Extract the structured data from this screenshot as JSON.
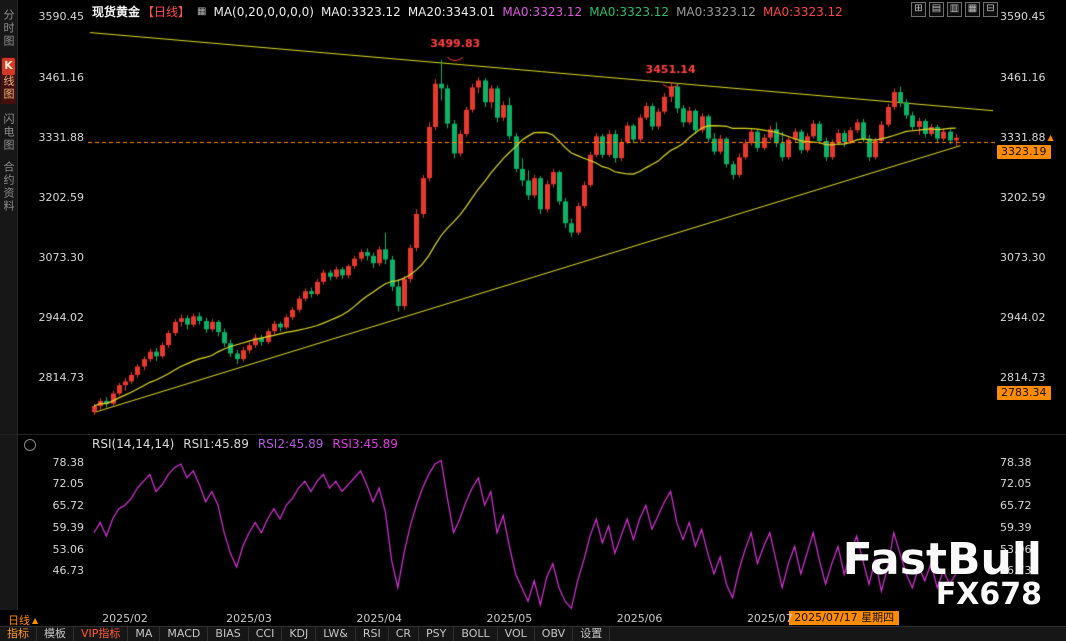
{
  "legend": {
    "symbol": "现货黄金",
    "period": "【日线】",
    "settings_icon": "▦",
    "ma_settings": "MA(0,20,0,0,0,0)",
    "ma_items": [
      {
        "text": "MA0:3323.12",
        "color": "#ededed"
      },
      {
        "text": "MA20:3343.01",
        "color": "#ededed"
      },
      {
        "text": "MA0:3323.12",
        "color": "#de59de"
      },
      {
        "text": "MA0:3323.12",
        "color": "#2fbf6b"
      },
      {
        "text": "MA0:3323.12",
        "color": "#9a9a9a"
      },
      {
        "text": "MA0:3323.12",
        "color": "#ff4545"
      }
    ]
  },
  "window_icons": [
    {
      "name": "grid-layout-icon",
      "glyph": "⊞"
    },
    {
      "name": "rows-layout-icon",
      "glyph": "▤"
    },
    {
      "name": "columns-layout-icon",
      "glyph": "▥"
    },
    {
      "name": "panes-layout-icon",
      "glyph": "▦"
    },
    {
      "name": "minimize-layout-icon",
      "glyph": "⊟"
    }
  ],
  "sidebar": {
    "items": [
      {
        "label": "分时图",
        "active": false
      },
      {
        "label": "K线图",
        "active": true,
        "badge": "K",
        "rest": "线图"
      },
      {
        "label": "闪电图",
        "active": false
      },
      {
        "label": "合约资料",
        "active": false
      }
    ]
  },
  "rsi_legend": {
    "title": "RSI(14,14,14)",
    "items": [
      {
        "text": "RSI1:45.89",
        "color": "#d8d8d8"
      },
      {
        "text": "RSI2:45.89",
        "color": "#b45ae0"
      },
      {
        "text": "RSI3:45.89",
        "color": "#e03ce0"
      }
    ]
  },
  "timeline": {
    "period_label": "日线",
    "period_arrow": "▲",
    "current_date": "2025/07/17 星期四"
  },
  "toolbar": {
    "items": [
      {
        "label": "指标",
        "style": "accent"
      },
      {
        "label": "模板",
        "style": "normal"
      },
      {
        "label": "VIP指标",
        "style": "vip"
      },
      {
        "label": "MA",
        "style": "normal"
      },
      {
        "label": "MACD",
        "style": "normal"
      },
      {
        "label": "BIAS",
        "style": "normal"
      },
      {
        "label": "CCI",
        "style": "normal"
      },
      {
        "label": "KDJ",
        "style": "normal"
      },
      {
        "label": "LW&",
        "style": "normal"
      },
      {
        "label": "RSI",
        "style": "normal"
      },
      {
        "label": "CR",
        "style": "normal"
      },
      {
        "label": "PSY",
        "style": "normal"
      },
      {
        "label": "BOLL",
        "style": "normal"
      },
      {
        "label": "VOL",
        "style": "normal"
      },
      {
        "label": "OBV",
        "style": "normal"
      },
      {
        "label": "设置",
        "style": "normal"
      }
    ]
  },
  "watermark": {
    "brand": "FastBull",
    "sub": "FX678"
  },
  "chart_data": [
    {
      "type": "candlestick",
      "title": "现货黄金 日线",
      "ylim": [
        2695,
        3628
      ],
      "price_axis_labels": [
        3590.45,
        3461.16,
        3331.88,
        3202.59,
        3073.3,
        2944.02,
        2814.73
      ],
      "arrow_at": 3331.88,
      "arrow_glyph": "▲",
      "ma_period": 20,
      "month_ticks": [
        {
          "label": "2025/02",
          "index": 5
        },
        {
          "label": "2025/03",
          "index": 25
        },
        {
          "label": "2025/04",
          "index": 46
        },
        {
          "label": "2025/05",
          "index": 67
        },
        {
          "label": "2025/06",
          "index": 88
        },
        {
          "label": "2025/07",
          "index": 109
        }
      ],
      "trendlines": [
        {
          "x1": 0.002,
          "price1": 3558,
          "x2": 0.998,
          "price2": 3390
        },
        {
          "x1": 0.008,
          "price1": 2742,
          "x2": 0.962,
          "price2": 3315
        }
      ],
      "crosshair": {
        "index": 121,
        "price": 3323.19,
        "price_label": "3323.19",
        "date_label": "2025/07/17 星期四"
      },
      "low_marker": {
        "price": 2783.34,
        "label": "2783.34"
      },
      "annotations": [
        {
          "text": "3499.83",
          "index": 56,
          "price": 3528,
          "dx": 14
        },
        {
          "text": "3451.14",
          "index": 93,
          "price": 3470,
          "dx": 0
        }
      ],
      "colors": {
        "up": "#e8392f",
        "down": "#0cb267",
        "ma": "#dedc25",
        "trend": "#dedc25",
        "crosshair": "#ff8c00",
        "annotation": "#ff4242"
      },
      "candles_ohlc": [
        [
          2742,
          2760,
          2736,
          2755
        ],
        [
          2755,
          2772,
          2748,
          2766
        ],
        [
          2766,
          2774,
          2752,
          2760
        ],
        [
          2760,
          2788,
          2756,
          2782
        ],
        [
          2782,
          2805,
          2778,
          2800
        ],
        [
          2800,
          2815,
          2788,
          2808
        ],
        [
          2808,
          2828,
          2802,
          2822
        ],
        [
          2822,
          2845,
          2816,
          2840
        ],
        [
          2840,
          2862,
          2832,
          2856
        ],
        [
          2856,
          2878,
          2850,
          2872
        ],
        [
          2872,
          2880,
          2852,
          2862
        ],
        [
          2862,
          2892,
          2858,
          2886
        ],
        [
          2886,
          2918,
          2880,
          2912
        ],
        [
          2912,
          2942,
          2906,
          2936
        ],
        [
          2936,
          2952,
          2926,
          2944
        ],
        [
          2944,
          2950,
          2920,
          2930
        ],
        [
          2930,
          2954,
          2925,
          2948
        ],
        [
          2948,
          2956,
          2930,
          2938
        ],
        [
          2938,
          2945,
          2912,
          2920
        ],
        [
          2920,
          2942,
          2915,
          2936
        ],
        [
          2936,
          2940,
          2905,
          2914
        ],
        [
          2914,
          2922,
          2882,
          2890
        ],
        [
          2890,
          2898,
          2860,
          2868
        ],
        [
          2868,
          2876,
          2845,
          2856
        ],
        [
          2856,
          2882,
          2850,
          2875
        ],
        [
          2875,
          2892,
          2868,
          2886
        ],
        [
          2886,
          2910,
          2880,
          2902
        ],
        [
          2902,
          2908,
          2885,
          2893
        ],
        [
          2893,
          2922,
          2888,
          2916
        ],
        [
          2916,
          2938,
          2910,
          2932
        ],
        [
          2932,
          2936,
          2915,
          2924
        ],
        [
          2924,
          2952,
          2920,
          2946
        ],
        [
          2946,
          2968,
          2940,
          2962
        ],
        [
          2962,
          2992,
          2956,
          2986
        ],
        [
          2986,
          3008,
          2980,
          3002
        ],
        [
          3002,
          3010,
          2988,
          2996
        ],
        [
          2996,
          3028,
          2992,
          3022
        ],
        [
          3022,
          3048,
          3016,
          3042
        ],
        [
          3042,
          3048,
          3025,
          3033
        ],
        [
          3033,
          3055,
          3028,
          3049
        ],
        [
          3049,
          3054,
          3028,
          3036
        ],
        [
          3036,
          3060,
          3030,
          3056
        ],
        [
          3056,
          3078,
          3050,
          3072
        ],
        [
          3072,
          3092,
          3066,
          3086
        ],
        [
          3086,
          3094,
          3068,
          3078
        ],
        [
          3078,
          3085,
          3052,
          3062
        ],
        [
          3062,
          3098,
          3056,
          3092
        ],
        [
          3092,
          3128,
          3060,
          3070
        ],
        [
          3070,
          3078,
          3002,
          3012
        ],
        [
          3012,
          3028,
          2958,
          2970
        ],
        [
          2970,
          3035,
          2962,
          3028
        ],
        [
          3028,
          3102,
          3020,
          3095
        ],
        [
          3095,
          3178,
          3088,
          3168
        ],
        [
          3168,
          3252,
          3160,
          3245
        ],
        [
          3245,
          3365,
          3238,
          3355
        ],
        [
          3355,
          3458,
          3348,
          3448
        ],
        [
          3448,
          3499.83,
          3412,
          3438
        ],
        [
          3438,
          3446,
          3352,
          3362
        ],
        [
          3362,
          3370,
          3288,
          3298
        ],
        [
          3298,
          3348,
          3292,
          3340
        ],
        [
          3340,
          3398,
          3334,
          3392
        ],
        [
          3392,
          3448,
          3386,
          3440
        ],
        [
          3440,
          3462,
          3428,
          3455
        ],
        [
          3455,
          3460,
          3398,
          3408
        ],
        [
          3408,
          3445,
          3395,
          3438
        ],
        [
          3438,
          3444,
          3365,
          3375
        ],
        [
          3375,
          3410,
          3368,
          3402
        ],
        [
          3402,
          3418,
          3328,
          3335
        ],
        [
          3335,
          3342,
          3258,
          3265
        ],
        [
          3265,
          3288,
          3228,
          3240
        ],
        [
          3240,
          3262,
          3198,
          3208
        ],
        [
          3208,
          3252,
          3202,
          3245
        ],
        [
          3245,
          3250,
          3168,
          3178
        ],
        [
          3178,
          3240,
          3172,
          3232
        ],
        [
          3232,
          3265,
          3225,
          3258
        ],
        [
          3258,
          3262,
          3188,
          3195
        ],
        [
          3195,
          3202,
          3138,
          3148
        ],
        [
          3148,
          3158,
          3118,
          3128
        ],
        [
          3128,
          3192,
          3122,
          3185
        ],
        [
          3185,
          3238,
          3180,
          3230
        ],
        [
          3230,
          3302,
          3225,
          3295
        ],
        [
          3295,
          3342,
          3290,
          3335
        ],
        [
          3335,
          3340,
          3288,
          3295
        ],
        [
          3295,
          3348,
          3290,
          3340
        ],
        [
          3340,
          3348,
          3278,
          3288
        ],
        [
          3288,
          3330,
          3282,
          3322
        ],
        [
          3322,
          3365,
          3318,
          3358
        ],
        [
          3358,
          3362,
          3320,
          3328
        ],
        [
          3328,
          3382,
          3322,
          3375
        ],
        [
          3375,
          3408,
          3370,
          3400
        ],
        [
          3400,
          3406,
          3348,
          3356
        ],
        [
          3356,
          3395,
          3350,
          3388
        ],
        [
          3388,
          3428,
          3382,
          3420
        ],
        [
          3420,
          3451.14,
          3408,
          3442
        ],
        [
          3442,
          3450,
          3385,
          3395
        ],
        [
          3395,
          3402,
          3355,
          3365
        ],
        [
          3365,
          3398,
          3360,
          3390
        ],
        [
          3390,
          3394,
          3340,
          3348
        ],
        [
          3348,
          3385,
          3342,
          3378
        ],
        [
          3378,
          3382,
          3322,
          3330
        ],
        [
          3330,
          3342,
          3295,
          3302
        ],
        [
          3302,
          3338,
          3296,
          3330
        ],
        [
          3330,
          3334,
          3268,
          3275
        ],
        [
          3275,
          3282,
          3242,
          3252
        ],
        [
          3252,
          3298,
          3246,
          3290
        ],
        [
          3290,
          3328,
          3285,
          3320
        ],
        [
          3320,
          3352,
          3315,
          3345
        ],
        [
          3345,
          3350,
          3302,
          3310
        ],
        [
          3310,
          3340,
          3305,
          3332
        ],
        [
          3332,
          3358,
          3326,
          3350
        ],
        [
          3350,
          3365,
          3312,
          3320
        ],
        [
          3320,
          3345,
          3282,
          3290
        ],
        [
          3290,
          3335,
          3285,
          3328
        ],
        [
          3328,
          3352,
          3322,
          3345
        ],
        [
          3345,
          3350,
          3298,
          3305
        ],
        [
          3305,
          3342,
          3300,
          3335
        ],
        [
          3335,
          3370,
          3330,
          3362
        ],
        [
          3362,
          3368,
          3318,
          3325
        ],
        [
          3325,
          3332,
          3282,
          3290
        ],
        [
          3290,
          3328,
          3284,
          3322
        ],
        [
          3322,
          3350,
          3316,
          3342
        ],
        [
          3342,
          3348,
          3312,
          3323.19
        ],
        [
          3323,
          3355,
          3318,
          3348
        ],
        [
          3348,
          3372,
          3342,
          3365
        ],
        [
          3365,
          3372,
          3322,
          3330
        ],
        [
          3330,
          3338,
          3282,
          3290
        ],
        [
          3290,
          3332,
          3285,
          3325
        ],
        [
          3325,
          3368,
          3320,
          3360
        ],
        [
          3360,
          3405,
          3355,
          3398
        ],
        [
          3398,
          3438,
          3392,
          3430
        ],
        [
          3430,
          3442,
          3398,
          3408
        ],
        [
          3408,
          3415,
          3372,
          3380
        ],
        [
          3380,
          3388,
          3348,
          3355
        ],
        [
          3355,
          3375,
          3338,
          3368
        ],
        [
          3368,
          3372,
          3332,
          3340
        ],
        [
          3340,
          3362,
          3335,
          3355
        ],
        [
          3355,
          3360,
          3322,
          3330
        ],
        [
          3330,
          3352,
          3325,
          3345
        ],
        [
          3345,
          3350,
          3318,
          3326
        ],
        [
          3326,
          3340,
          3312,
          3332
        ]
      ]
    },
    {
      "type": "line",
      "name": "RSI(14,14,14)",
      "ylim": [
        35.5,
        81.5
      ],
      "axis_labels": [
        78.38,
        72.05,
        65.72,
        59.39,
        53.06,
        46.73
      ],
      "color": "#dd33dd",
      "current": 45.89,
      "values": [
        58,
        61,
        57,
        62,
        65,
        66,
        68,
        71,
        73,
        75,
        70,
        72,
        75,
        77,
        78,
        74,
        76,
        72,
        67,
        70,
        66,
        58,
        52,
        48,
        54,
        58,
        61,
        58,
        62,
        65,
        62,
        66,
        68,
        71,
        73,
        70,
        73,
        75,
        71,
        73,
        70,
        72,
        74,
        76,
        72,
        67,
        71,
        64,
        50,
        42,
        52,
        60,
        66,
        71,
        75,
        78,
        79,
        68,
        58,
        62,
        67,
        71,
        74,
        66,
        70,
        58,
        63,
        54,
        46,
        42,
        38,
        44,
        37,
        45,
        49,
        42,
        38,
        36,
        44,
        50,
        57,
        62,
        55,
        60,
        52,
        57,
        62,
        56,
        62,
        66,
        59,
        63,
        67,
        70,
        61,
        56,
        61,
        54,
        59,
        52,
        46,
        51,
        43,
        39,
        47,
        53,
        58,
        49,
        54,
        58,
        50,
        42,
        49,
        54,
        46,
        52,
        58,
        50,
        43,
        49,
        54,
        45.89,
        52,
        57,
        50,
        43,
        50,
        41,
        48,
        58,
        52,
        46,
        42,
        48,
        44,
        49,
        42,
        47,
        43,
        46
      ]
    }
  ]
}
